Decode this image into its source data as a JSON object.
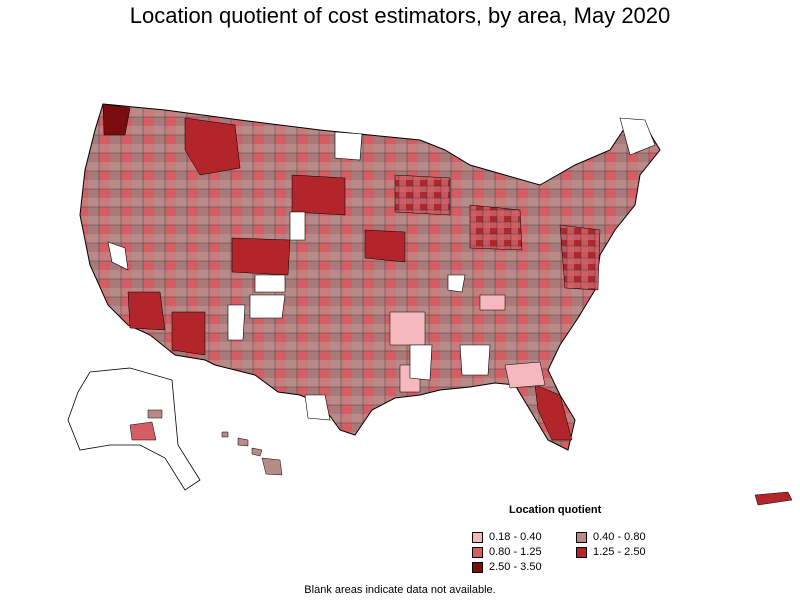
{
  "title": "Location quotient of cost estimators, by area, May 2020",
  "legend": {
    "title": "Location quotient",
    "items": [
      {
        "label": "0.18 - 0.40",
        "color": "#f4b8bd"
      },
      {
        "label": "0.40 - 0.80",
        "color": "#b88a88"
      },
      {
        "label": "0.80 - 1.25",
        "color": "#d45e64"
      },
      {
        "label": "1.25 - 2.50",
        "color": "#b2252b"
      },
      {
        "label": "2.50 - 3.50",
        "color": "#7a0d10"
      }
    ]
  },
  "footnote": "Blank areas indicate data not available.",
  "colors": {
    "outline": "#000000",
    "no_data": "#ffffff"
  }
}
